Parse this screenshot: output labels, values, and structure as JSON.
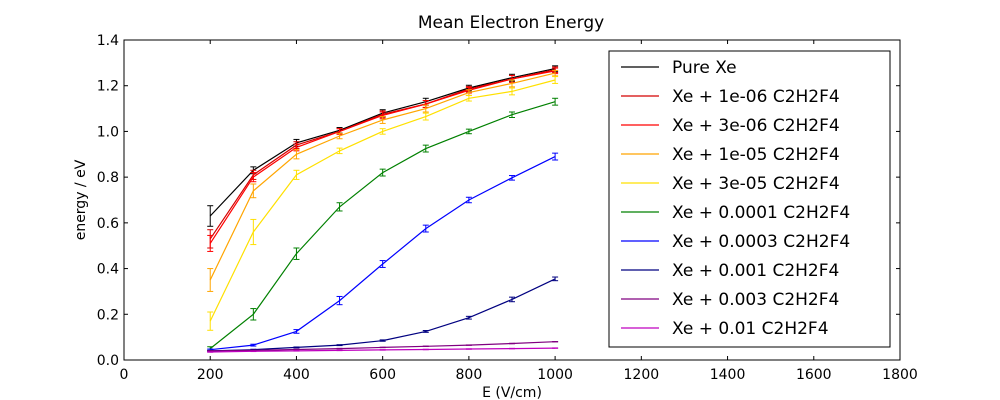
{
  "chart_data": {
    "type": "line",
    "title": "Mean Electron Energy",
    "xlabel": "E (V/cm)",
    "ylabel": "energy / eV",
    "xlim": [
      0,
      1800
    ],
    "ylim": [
      0.0,
      1.4
    ],
    "xticks": [
      "0",
      "200",
      "400",
      "600",
      "800",
      "1000",
      "1200",
      "1400",
      "1600",
      "1800"
    ],
    "yticks": [
      "0.0",
      "0.2",
      "0.4",
      "0.6",
      "0.8",
      "1.0",
      "1.2",
      "1.4"
    ],
    "legend_position": "right",
    "x": [
      200,
      300,
      400,
      500,
      600,
      700,
      800,
      900,
      1000
    ],
    "series": [
      {
        "name": "Pure Xe",
        "color": "#000000",
        "values": [
          0.63,
          0.83,
          0.95,
          1.005,
          1.08,
          1.13,
          1.19,
          1.235,
          1.275
        ],
        "errors": [
          0.045,
          0.015,
          0.015,
          0.012,
          0.015,
          0.015,
          0.012,
          0.015,
          0.012
        ]
      },
      {
        "name": "Xe + 1e-06 C2H2F4",
        "color": "#d40000",
        "values": [
          0.53,
          0.81,
          0.94,
          1.0,
          1.075,
          1.12,
          1.185,
          1.23,
          1.27
        ],
        "errors": [
          0.04,
          0.02,
          0.015,
          0.012,
          0.015,
          0.015,
          0.012,
          0.015,
          0.012
        ]
      },
      {
        "name": "Xe + 3e-06 C2H2F4",
        "color": "#ff0000",
        "values": [
          0.51,
          0.8,
          0.93,
          1.0,
          1.07,
          1.12,
          1.18,
          1.23,
          1.265
        ],
        "errors": [
          0.035,
          0.02,
          0.015,
          0.012,
          0.015,
          0.015,
          0.012,
          0.015,
          0.012
        ]
      },
      {
        "name": "Xe + 1e-05 C2H2F4",
        "color": "#ffa500",
        "values": [
          0.35,
          0.74,
          0.9,
          0.98,
          1.05,
          1.1,
          1.17,
          1.21,
          1.255
        ],
        "errors": [
          0.05,
          0.03,
          0.02,
          0.012,
          0.015,
          0.015,
          0.012,
          0.015,
          0.012
        ]
      },
      {
        "name": "Xe + 3e-05 C2H2F4",
        "color": "#ffe000",
        "values": [
          0.17,
          0.56,
          0.81,
          0.915,
          1.0,
          1.065,
          1.145,
          1.175,
          1.225
        ],
        "errors": [
          0.04,
          0.055,
          0.02,
          0.012,
          0.012,
          0.015,
          0.012,
          0.015,
          0.015
        ]
      },
      {
        "name": "Xe + 0.0001 C2H2F4",
        "color": "#008000",
        "values": [
          0.05,
          0.2,
          0.465,
          0.67,
          0.82,
          0.925,
          1.0,
          1.073,
          1.13
        ],
        "errors": [
          0.008,
          0.025,
          0.025,
          0.018,
          0.015,
          0.015,
          0.01,
          0.012,
          0.015
        ]
      },
      {
        "name": "Xe + 0.0003 C2H2F4",
        "color": "#0000ff",
        "values": [
          0.045,
          0.065,
          0.125,
          0.26,
          0.42,
          0.575,
          0.7,
          0.797,
          0.89
        ],
        "errors": [
          0.003,
          0.004,
          0.008,
          0.018,
          0.015,
          0.015,
          0.012,
          0.01,
          0.015
        ]
      },
      {
        "name": "Xe + 0.001 C2H2F4",
        "color": "#000080",
        "values": [
          0.04,
          0.045,
          0.055,
          0.065,
          0.085,
          0.125,
          0.185,
          0.265,
          0.355
        ],
        "errors": [
          0.002,
          0.002,
          0.002,
          0.002,
          0.003,
          0.004,
          0.006,
          0.01,
          0.008
        ]
      },
      {
        "name": "Xe + 0.003 C2H2F4",
        "color": "#800080",
        "values": [
          0.04,
          0.042,
          0.046,
          0.05,
          0.055,
          0.06,
          0.065,
          0.072,
          0.08
        ],
        "errors": [
          0.001,
          0.001,
          0.001,
          0.001,
          0.001,
          0.001,
          0.001,
          0.001,
          0.001
        ]
      },
      {
        "name": "Xe + 0.01 C2H2F4",
        "color": "#bf00bf",
        "values": [
          0.035,
          0.038,
          0.04,
          0.042,
          0.044,
          0.046,
          0.048,
          0.05,
          0.052
        ],
        "errors": [
          0.001,
          0.001,
          0.001,
          0.001,
          0.001,
          0.001,
          0.001,
          0.001,
          0.001
        ]
      }
    ]
  }
}
